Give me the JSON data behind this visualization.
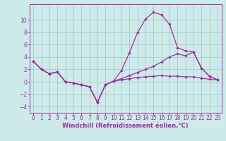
{
  "xlabel": "Windchill (Refroidissement éolien,°C)",
  "background_color": "#ceeaea",
  "line_color": "#993399",
  "grid_color": "#aacccc",
  "x_hours": [
    0,
    1,
    2,
    3,
    4,
    5,
    6,
    7,
    8,
    9,
    10,
    11,
    12,
    13,
    14,
    15,
    16,
    17,
    18,
    19,
    20,
    21,
    22,
    23
  ],
  "line1": [
    3.3,
    2.0,
    1.3,
    1.6,
    0.0,
    -0.2,
    -0.5,
    -0.8,
    -3.3,
    -0.5,
    0.1,
    1.8,
    4.7,
    7.9,
    10.1,
    11.2,
    10.8,
    9.3,
    5.5,
    5.0,
    4.8,
    2.2,
    0.9,
    0.3
  ],
  "line2": [
    3.3,
    2.0,
    1.3,
    1.6,
    0.0,
    -0.2,
    -0.5,
    -0.8,
    -3.3,
    -0.5,
    0.1,
    0.5,
    1.0,
    1.5,
    2.0,
    2.5,
    3.2,
    4.0,
    4.5,
    4.2,
    4.8,
    2.2,
    0.9,
    0.3
  ],
  "line3": [
    3.3,
    2.0,
    1.3,
    1.6,
    0.0,
    -0.2,
    -0.5,
    -0.8,
    -3.3,
    -0.5,
    0.1,
    0.3,
    0.5,
    0.7,
    0.8,
    0.9,
    1.0,
    0.9,
    0.9,
    0.8,
    0.8,
    0.6,
    0.4,
    0.3
  ],
  "ylim": [
    -5.0,
    12.5
  ],
  "xlim": [
    -0.5,
    23.5
  ],
  "yticks": [
    -4,
    -2,
    0,
    2,
    4,
    6,
    8,
    10
  ],
  "xticks": [
    0,
    1,
    2,
    3,
    4,
    5,
    6,
    7,
    8,
    9,
    10,
    11,
    12,
    13,
    14,
    15,
    16,
    17,
    18,
    19,
    20,
    21,
    22,
    23
  ],
  "tick_fontsize": 5.5,
  "xlabel_fontsize": 6.0
}
